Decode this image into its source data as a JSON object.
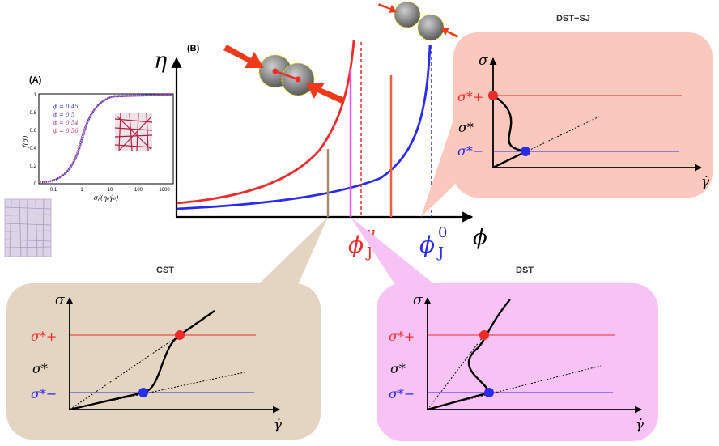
{
  "panel_a": {
    "label": "(A)",
    "ylabel": "f(σ)",
    "xlabel": "σ/(η₀γ̇₀)",
    "y_ticks": [
      "0",
      "0.2",
      "0.4",
      "0.6",
      "0.8",
      "1"
    ],
    "x_ticks": [
      "0.1",
      "1",
      "10",
      "100",
      "1000"
    ],
    "legend": [
      {
        "text": "ϕ = 0.45",
        "color": "#3333cc"
      },
      {
        "text": "ϕ = 0.5",
        "color": "#5544bb"
      },
      {
        "text": "ϕ = 0.54",
        "color": "#8844aa"
      },
      {
        "text": "ϕ = 0.56",
        "color": "#cc3366"
      }
    ]
  },
  "panel_b": {
    "label": "(B)",
    "ylabel": "η",
    "xlabel": "ϕ",
    "phi_mu_label": "ϕ",
    "phi_mu_sup": "μ",
    "phi_mu_sub": "J",
    "phi_0_label": "ϕ",
    "phi_0_sup": "0",
    "phi_0_sub": "J"
  },
  "insets": {
    "dst_sj": {
      "title": "DST−SJ"
    },
    "cst": {
      "title": "CST"
    },
    "dst": {
      "title": "DST"
    }
  },
  "inset_axes": {
    "sigma": "σ",
    "gammadot": "γ̇",
    "sigma_plus": "σ*+",
    "sigma_star": "σ*",
    "sigma_minus": "σ*−"
  },
  "colors": {
    "red": "#ee2b2b",
    "blue": "#2b2bee",
    "dst_sj_bg": "#fac8bd",
    "cst_bg": "#e3d5c2",
    "dst_bg": "#f7c3f5",
    "particle": "#8a8a8a"
  }
}
